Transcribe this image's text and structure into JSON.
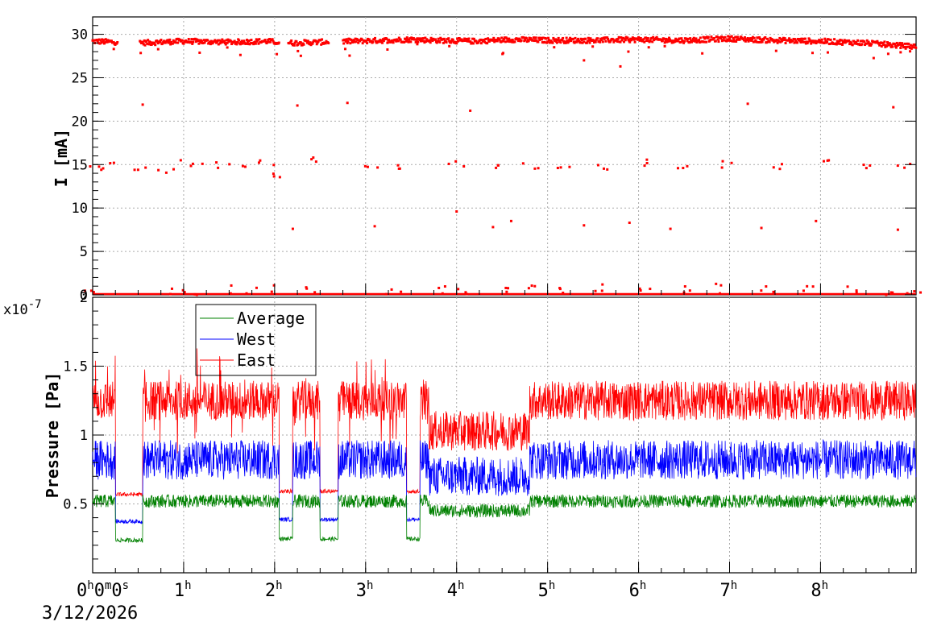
{
  "chart_data": [
    {
      "type": "scatter",
      "title": "",
      "xlabel": "",
      "ylabel": "I [mA]",
      "ylim": [
        0,
        32
      ],
      "yticks": [
        "0",
        "5",
        "10",
        "15",
        "20",
        "25",
        "30"
      ],
      "grid": true,
      "series": [
        {
          "color": "#ff0000",
          "description_levels_mA": [
            29.2,
            14.9,
            0.2
          ],
          "top_band": [
            [
              0.0,
              29.2
            ],
            [
              0.25,
              29.1
            ],
            [
              0.5,
              29.0
            ],
            [
              1.0,
              29.2
            ],
            [
              1.5,
              29.1
            ],
            [
              1.9,
              29.2
            ],
            [
              2.2,
              29.0
            ],
            [
              2.5,
              29.1
            ],
            [
              2.85,
              29.2
            ],
            [
              3.2,
              29.3
            ],
            [
              3.5,
              29.4
            ],
            [
              3.8,
              29.3
            ],
            [
              4.2,
              29.2
            ],
            [
              4.6,
              29.4
            ],
            [
              5.0,
              29.3
            ],
            [
              5.5,
              29.3
            ],
            [
              6.0,
              29.4
            ],
            [
              6.5,
              29.3
            ],
            [
              7.0,
              29.5
            ],
            [
              7.5,
              29.3
            ],
            [
              8.0,
              29.2
            ],
            [
              8.5,
              29.0
            ],
            [
              9.0,
              28.6
            ]
          ],
          "mid_points": [
            [
              0.05,
              14.5
            ],
            [
              0.2,
              14.8
            ],
            [
              0.5,
              14.3
            ],
            [
              0.8,
              14.2
            ],
            [
              1.05,
              15.2
            ],
            [
              1.3,
              14.9
            ],
            [
              1.6,
              14.8
            ],
            [
              1.9,
              15.1
            ],
            [
              2.05,
              13.6
            ],
            [
              2.4,
              15.5
            ],
            [
              3.05,
              14.8
            ],
            [
              3.4,
              14.9
            ],
            [
              4.0,
              15.1
            ],
            [
              4.4,
              14.7
            ],
            [
              4.8,
              14.9
            ],
            [
              5.2,
              15.0
            ],
            [
              5.6,
              14.8
            ],
            [
              6.0,
              15.2
            ],
            [
              6.5,
              14.7
            ],
            [
              7.0,
              15.0
            ],
            [
              7.5,
              14.8
            ],
            [
              8.0,
              15.3
            ],
            [
              8.5,
              14.6
            ],
            [
              8.9,
              15.0
            ]
          ],
          "outliers": [
            [
              0.55,
              21.9
            ],
            [
              2.25,
              21.8
            ],
            [
              2.8,
              22.1
            ],
            [
              4.15,
              21.2
            ],
            [
              7.2,
              22.0
            ],
            [
              8.8,
              21.6
            ],
            [
              2.2,
              7.6
            ],
            [
              3.1,
              7.9
            ],
            [
              4.0,
              9.6
            ],
            [
              4.4,
              7.8
            ],
            [
              4.6,
              8.5
            ],
            [
              5.4,
              8.0
            ],
            [
              5.9,
              8.3
            ],
            [
              6.35,
              7.6
            ],
            [
              7.35,
              7.7
            ],
            [
              7.95,
              8.5
            ],
            [
              8.85,
              7.5
            ],
            [
              5.8,
              26.3
            ],
            [
              6.7,
              27.8
            ],
            [
              5.4,
              27.0
            ]
          ],
          "low_points": [
            [
              0.0,
              0.6
            ],
            [
              0.9,
              0.9
            ],
            [
              1.05,
              1.3
            ],
            [
              1.6,
              1.2
            ],
            [
              1.9,
              1.1
            ],
            [
              2.4,
              0.9
            ],
            [
              3.3,
              0.7
            ],
            [
              3.8,
              1.0
            ],
            [
              4.1,
              1.2
            ],
            [
              4.5,
              1.0
            ],
            [
              4.85,
              1.1
            ],
            [
              5.2,
              0.8
            ],
            [
              5.6,
              1.2
            ],
            [
              6.1,
              1.0
            ],
            [
              6.5,
              1.1
            ],
            [
              6.9,
              1.3
            ],
            [
              7.4,
              1.0
            ],
            [
              7.9,
              1.2
            ],
            [
              8.3,
              1.0
            ],
            [
              8.7,
              1.1
            ],
            [
              9.0,
              0.8
            ]
          ],
          "zero_line": 0.0
        }
      ]
    },
    {
      "type": "line",
      "title": "",
      "xlabel": "",
      "ylabel": "Pressure [Pa]",
      "y_exponent": "x10",
      "y_exponent_power": "-7",
      "ylim": [
        0,
        2
      ],
      "yticks": [
        "0.5",
        "1",
        "1.5",
        "2"
      ],
      "grid": true,
      "legend": {
        "placement": "top-left",
        "entries": [
          "Average",
          "West",
          "East"
        ]
      },
      "series": [
        {
          "name": "East",
          "color": "#ff0000",
          "base": 1.25
        },
        {
          "name": "West",
          "color": "#0000ff",
          "base": 0.82
        },
        {
          "name": "Average",
          "color": "#008000",
          "base": 0.52
        }
      ]
    }
  ],
  "x_axis": {
    "ticks": [
      {
        "h": "0",
        "m": "0",
        "s": "0"
      },
      {
        "h": "1"
      },
      {
        "h": "2"
      },
      {
        "h": "3"
      },
      {
        "h": "4"
      },
      {
        "h": "5"
      },
      {
        "h": "6"
      },
      {
        "h": "7"
      },
      {
        "h": "8"
      }
    ],
    "unit_h": "h",
    "unit_m": "m",
    "unit_s": "s",
    "range_hours": [
      0,
      9.05
    ],
    "date": "3/12/2026"
  }
}
